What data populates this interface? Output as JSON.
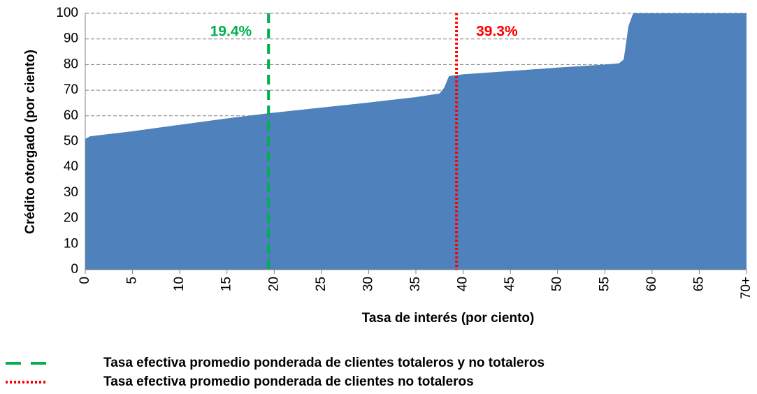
{
  "chart_data": {
    "type": "area",
    "xlabel": "Tasa de interés (por ciento)",
    "ylabel": "Crédito otorgado (por ciento)",
    "color": "#4f81bd",
    "x": [
      0,
      0.5,
      5,
      10,
      15,
      19.4,
      25,
      30,
      35,
      37.5,
      38,
      38.5,
      40,
      45,
      50,
      55,
      56.5,
      57,
      57.5,
      58,
      70
    ],
    "values": [
      51,
      52,
      54,
      56.5,
      59,
      61,
      63.2,
      65.2,
      67.3,
      68.7,
      71,
      75.5,
      76.2,
      77.5,
      78.8,
      80,
      80.5,
      82,
      95,
      100,
      100
    ],
    "xlim": [
      0,
      70
    ],
    "ylim": [
      0,
      100
    ],
    "xticks": [
      0,
      5,
      10,
      15,
      20,
      25,
      30,
      35,
      40,
      45,
      50,
      55,
      60,
      65,
      {
        "value": 70,
        "label": "70+"
      }
    ],
    "yticks": [
      0,
      10,
      20,
      30,
      40,
      50,
      60,
      70,
      80,
      90,
      100
    ],
    "grid": true,
    "annotations": [
      {
        "x": 19.4,
        "label": "19.4%",
        "name": "Tasa efectiva promedio ponderada de clientes totaleros y no totaleros",
        "color": "#00b050",
        "style": "dashed"
      },
      {
        "x": 39.3,
        "label": "39.3%",
        "name": "Tasa efectiva promedio ponderada de clientes no totaleros",
        "color": "#ff0000",
        "style": "dotted"
      }
    ]
  }
}
